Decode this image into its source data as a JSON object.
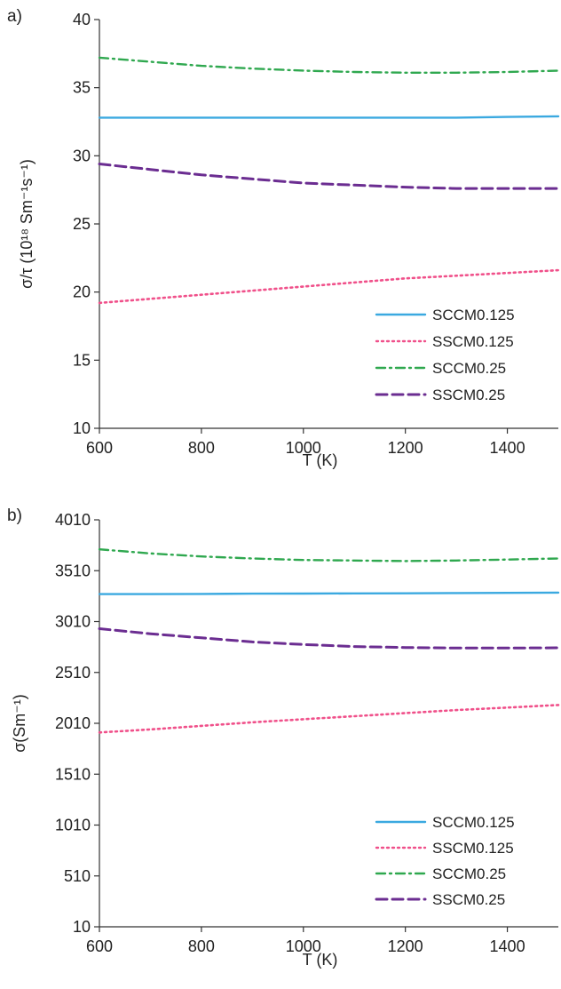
{
  "chart_data": [
    {
      "panel_label": "a)",
      "type": "line",
      "xlabel": "T (K)",
      "ylabel": "σ/τ (10¹⁸ Sm⁻¹s⁻¹)",
      "xlim": [
        600,
        1500
      ],
      "ylim": [
        10,
        40
      ],
      "xticks": [
        600,
        800,
        1000,
        1200,
        1400
      ],
      "yticks": [
        10,
        15,
        20,
        25,
        30,
        35,
        40
      ],
      "x": [
        600,
        700,
        800,
        900,
        1000,
        1100,
        1200,
        1300,
        1400,
        1500
      ],
      "series": [
        {
          "name": "SCCM0.125",
          "color": "#3ba9e0",
          "dash": "solid",
          "values": [
            32.8,
            32.8,
            32.8,
            32.8,
            32.8,
            32.8,
            32.8,
            32.8,
            32.85,
            32.9
          ]
        },
        {
          "name": "SSCM0.125",
          "color": "#f0508a",
          "dash": "dotted",
          "values": [
            19.2,
            19.5,
            19.8,
            20.1,
            20.4,
            20.7,
            21.0,
            21.2,
            21.4,
            21.6
          ]
        },
        {
          "name": "SCCM0.25",
          "color": "#2fa84f",
          "dash": "dashdot",
          "values": [
            37.2,
            36.9,
            36.6,
            36.4,
            36.25,
            36.15,
            36.1,
            36.1,
            36.15,
            36.25
          ]
        },
        {
          "name": "SSCM0.25",
          "color": "#6b2d91",
          "dash": "dashed",
          "values": [
            29.4,
            29.0,
            28.6,
            28.3,
            28.0,
            27.85,
            27.7,
            27.6,
            27.6,
            27.6
          ]
        }
      ],
      "legend_position": "bottom-right",
      "grid": false
    },
    {
      "panel_label": "b)",
      "type": "line",
      "xlabel": "T (K)",
      "ylabel": "σ(Sm⁻¹)",
      "xlim": [
        600,
        1500
      ],
      "ylim": [
        10,
        4010
      ],
      "xticks": [
        600,
        800,
        1000,
        1200,
        1400
      ],
      "yticks": [
        10,
        510,
        1010,
        1510,
        2010,
        2510,
        3010,
        3510,
        4010
      ],
      "x": [
        600,
        700,
        800,
        900,
        1000,
        1100,
        1200,
        1300,
        1400,
        1500
      ],
      "series": [
        {
          "name": "SCCM0.125",
          "color": "#3ba9e0",
          "dash": "solid",
          "values": [
            3280,
            3280,
            3282,
            3284,
            3285,
            3287,
            3288,
            3290,
            3292,
            3295
          ]
        },
        {
          "name": "SSCM0.125",
          "color": "#f0508a",
          "dash": "dotted",
          "values": [
            1920,
            1950,
            1985,
            2020,
            2050,
            2080,
            2110,
            2140,
            2165,
            2190
          ]
        },
        {
          "name": "SCCM0.25",
          "color": "#2fa84f",
          "dash": "dashdot",
          "values": [
            3720,
            3680,
            3650,
            3630,
            3615,
            3610,
            3605,
            3610,
            3620,
            3630
          ]
        },
        {
          "name": "SSCM0.25",
          "color": "#6b2d91",
          "dash": "dashed",
          "values": [
            2940,
            2890,
            2850,
            2810,
            2785,
            2765,
            2755,
            2750,
            2750,
            2752
          ]
        }
      ],
      "legend_position": "bottom-right",
      "grid": false
    }
  ]
}
